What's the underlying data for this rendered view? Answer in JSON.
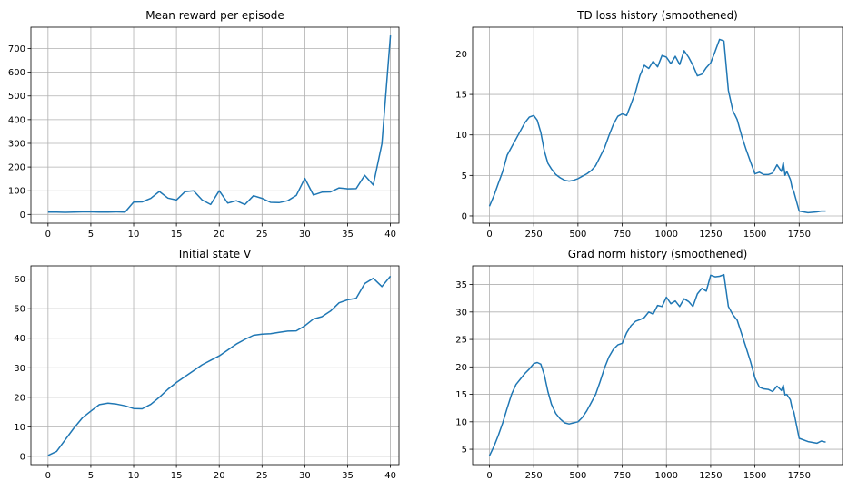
{
  "chart_data": [
    {
      "type": "line",
      "title": "Mean reward per episode",
      "xlabel": "",
      "ylabel": "",
      "xlim": [
        -2,
        41
      ],
      "ylim": [
        -37,
        790
      ],
      "xticks": [
        0,
        5,
        10,
        15,
        20,
        25,
        30,
        35,
        40
      ],
      "yticks": [
        0,
        100,
        200,
        300,
        400,
        500,
        600,
        700
      ],
      "grid": true,
      "color": "#1f77b4",
      "series": [
        {
          "x": [
            0,
            1,
            2,
            3,
            4,
            5,
            6,
            7,
            8,
            9,
            10,
            11,
            12,
            13,
            14,
            15,
            16,
            17,
            18,
            19,
            20,
            21,
            22,
            23,
            24,
            25,
            26,
            27,
            28,
            29,
            30,
            31,
            32,
            33,
            34,
            35,
            36,
            37,
            38,
            39,
            40
          ],
          "y": [
            10,
            10,
            9,
            10,
            11,
            11,
            10,
            10,
            11,
            10,
            52,
            53,
            68,
            97,
            69,
            61,
            96,
            100,
            61,
            42,
            100,
            48,
            58,
            42,
            79,
            68,
            51,
            50,
            58,
            80,
            152,
            82,
            94,
            95,
            112,
            108,
            109,
            165,
            124,
            298,
            755
          ]
        }
      ]
    },
    {
      "type": "line",
      "title": "TD loss history (smoothened)",
      "xlabel": "",
      "ylabel": "",
      "xlim": [
        -95,
        1995
      ],
      "ylim": [
        -0.9,
        23.3
      ],
      "xticks": [
        0,
        250,
        500,
        750,
        1000,
        1250,
        1500,
        1750
      ],
      "yticks": [
        0,
        5,
        10,
        15,
        20
      ],
      "grid": true,
      "color": "#1f77b4",
      "series": [
        {
          "x": [
            0,
            25,
            50,
            75,
            100,
            125,
            150,
            175,
            200,
            225,
            250,
            270,
            290,
            310,
            330,
            350,
            375,
            400,
            425,
            450,
            475,
            500,
            525,
            550,
            575,
            600,
            625,
            650,
            675,
            700,
            725,
            750,
            775,
            800,
            825,
            850,
            875,
            900,
            925,
            950,
            975,
            1000,
            1025,
            1050,
            1075,
            1100,
            1125,
            1150,
            1175,
            1200,
            1225,
            1250,
            1275,
            1300,
            1325,
            1350,
            1375,
            1400,
            1425,
            1450,
            1475,
            1500,
            1525,
            1550,
            1575,
            1600,
            1625,
            1650,
            1660,
            1670,
            1680,
            1700,
            1710,
            1720,
            1750,
            1800,
            1850,
            1875,
            1900
          ],
          "y": [
            1.2,
            2.5,
            4.0,
            5.5,
            7.5,
            8.5,
            9.5,
            10.5,
            11.5,
            12.2,
            12.4,
            11.8,
            10.3,
            8.0,
            6.5,
            5.8,
            5.1,
            4.7,
            4.4,
            4.3,
            4.4,
            4.6,
            4.9,
            5.2,
            5.6,
            6.2,
            7.3,
            8.4,
            9.9,
            11.3,
            12.3,
            12.6,
            12.4,
            13.8,
            15.3,
            17.3,
            18.6,
            18.2,
            19.1,
            18.4,
            19.8,
            19.6,
            18.8,
            19.7,
            18.7,
            20.4,
            19.6,
            18.6,
            17.3,
            17.5,
            18.3,
            18.9,
            20.3,
            21.8,
            21.6,
            15.5,
            13.0,
            11.9,
            9.9,
            8.2,
            6.7,
            5.2,
            5.4,
            5.1,
            5.1,
            5.3,
            6.3,
            5.5,
            6.6,
            5.0,
            5.5,
            4.5,
            3.5,
            3.0,
            0.6,
            0.4,
            0.5,
            0.6,
            0.6
          ]
        }
      ]
    },
    {
      "type": "line",
      "title": "Initial state V",
      "xlabel": "",
      "ylabel": "",
      "xlim": [
        -2,
        41
      ],
      "ylim": [
        -2.8,
        64.5
      ],
      "xticks": [
        0,
        5,
        10,
        15,
        20,
        25,
        30,
        35,
        40
      ],
      "yticks": [
        0,
        10,
        20,
        30,
        40,
        50,
        60
      ],
      "grid": true,
      "color": "#1f77b4",
      "series": [
        {
          "x": [
            0,
            1,
            2,
            3,
            4,
            5,
            6,
            7,
            8,
            9,
            10,
            11,
            12,
            13,
            14,
            15,
            16,
            17,
            18,
            19,
            20,
            21,
            22,
            23,
            24,
            25,
            26,
            27,
            28,
            29,
            30,
            31,
            32,
            33,
            34,
            35,
            36,
            37,
            38,
            39,
            40
          ],
          "y": [
            0.3,
            1.7,
            5.6,
            9.5,
            13.0,
            15.3,
            17.5,
            18.0,
            17.7,
            17.1,
            16.2,
            16.1,
            17.6,
            20.0,
            22.7,
            25.0,
            27.0,
            29.0,
            31.0,
            32.5,
            34.0,
            36.0,
            38.0,
            39.6,
            41.0,
            41.4,
            41.5,
            42.0,
            42.4,
            42.5,
            44.2,
            46.5,
            47.3,
            49.2,
            52.0,
            53.0,
            53.5,
            58.5,
            60.3,
            57.5,
            61.0
          ]
        }
      ]
    },
    {
      "type": "line",
      "title": "Grad norm history (smoothened)",
      "xlabel": "",
      "ylabel": "",
      "xlim": [
        -95,
        1995
      ],
      "ylim": [
        2.2,
        38.4
      ],
      "xticks": [
        0,
        250,
        500,
        750,
        1000,
        1250,
        1500,
        1750
      ],
      "yticks": [
        5,
        10,
        15,
        20,
        25,
        30,
        35
      ],
      "grid": true,
      "color": "#1f77b4",
      "series": [
        {
          "x": [
            0,
            25,
            50,
            75,
            100,
            125,
            150,
            175,
            200,
            225,
            250,
            270,
            290,
            310,
            330,
            350,
            375,
            400,
            425,
            450,
            475,
            500,
            525,
            550,
            575,
            600,
            625,
            650,
            675,
            700,
            725,
            750,
            775,
            800,
            825,
            850,
            875,
            900,
            925,
            950,
            975,
            1000,
            1025,
            1050,
            1075,
            1100,
            1125,
            1150,
            1175,
            1200,
            1225,
            1250,
            1275,
            1300,
            1325,
            1350,
            1375,
            1400,
            1425,
            1450,
            1475,
            1500,
            1525,
            1550,
            1575,
            1600,
            1625,
            1650,
            1660,
            1670,
            1680,
            1700,
            1710,
            1720,
            1750,
            1800,
            1850,
            1875,
            1900
          ],
          "y": [
            3.8,
            5.5,
            7.5,
            9.8,
            12.5,
            15.0,
            16.8,
            17.8,
            18.8,
            19.6,
            20.6,
            20.8,
            20.5,
            18.5,
            15.5,
            13.2,
            11.5,
            10.5,
            9.8,
            9.6,
            9.8,
            10.0,
            10.8,
            12.0,
            13.5,
            15.0,
            17.3,
            19.8,
            21.8,
            23.2,
            24.0,
            24.3,
            26.2,
            27.5,
            28.3,
            28.6,
            29.0,
            30.0,
            29.6,
            31.2,
            31.0,
            32.7,
            31.5,
            32.0,
            31.0,
            32.4,
            31.9,
            31.0,
            33.3,
            34.3,
            33.8,
            36.7,
            36.4,
            36.5,
            36.8,
            31.0,
            29.5,
            28.5,
            26.0,
            23.5,
            21.0,
            18.0,
            16.3,
            16.0,
            15.9,
            15.5,
            16.5,
            15.7,
            16.7,
            14.9,
            15.0,
            14.0,
            12.5,
            11.8,
            7.0,
            6.4,
            6.1,
            6.5,
            6.3
          ]
        }
      ]
    }
  ]
}
